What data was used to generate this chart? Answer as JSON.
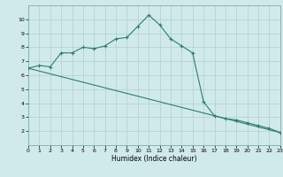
{
  "line1_x": [
    0,
    1,
    2,
    3,
    4,
    5,
    6,
    7,
    8,
    9,
    10,
    11,
    12,
    13,
    14,
    15,
    16,
    17,
    18,
    19,
    20,
    21,
    22,
    23
  ],
  "line1_y": [
    6.5,
    6.7,
    6.6,
    7.6,
    7.6,
    8.0,
    7.9,
    8.1,
    8.6,
    8.7,
    9.5,
    10.3,
    9.6,
    8.6,
    8.1,
    7.6,
    4.1,
    3.1,
    2.9,
    2.8,
    2.6,
    2.4,
    2.2,
    1.9
  ],
  "line2_x": [
    0,
    23
  ],
  "line2_y": [
    6.5,
    1.9
  ],
  "color": "#2d7d6e",
  "bg_color": "#d0eaea",
  "grid_color": "#b0cece",
  "xlabel": "Humidex (Indice chaleur)",
  "ylim": [
    1,
    11
  ],
  "xlim": [
    0,
    23
  ],
  "yticks": [
    2,
    3,
    4,
    5,
    6,
    7,
    8,
    9,
    10
  ],
  "xticks": [
    0,
    1,
    2,
    3,
    4,
    5,
    6,
    7,
    8,
    9,
    10,
    11,
    12,
    13,
    14,
    15,
    16,
    17,
    18,
    19,
    20,
    21,
    22,
    23
  ]
}
